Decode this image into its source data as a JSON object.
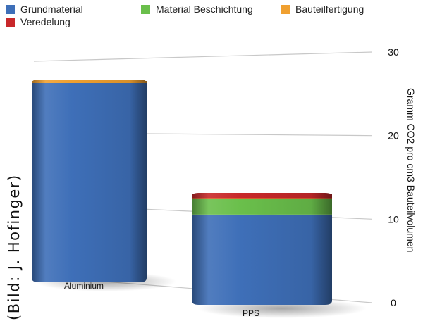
{
  "chart_data": {
    "type": "bar",
    "stacked": true,
    "categories": [
      "Aluminium",
      "PPS"
    ],
    "series": [
      {
        "name": "Grundmaterial",
        "color": "#3e6fb8",
        "values": [
          26.8,
          11.0
        ]
      },
      {
        "name": "Material Beschichtung",
        "color": "#6abf4b",
        "values": [
          0,
          2.0
        ]
      },
      {
        "name": "Bauteilfertigung",
        "color": "#f0a030",
        "values": [
          0.15,
          0.1
        ]
      },
      {
        "name": "Veredelung",
        "color": "#c8282a",
        "values": [
          0,
          0.5
        ]
      }
    ],
    "ylabel": "Gramm CO2 pro cm3 Bauteilvolumen",
    "yticks": [
      0,
      10,
      20,
      30
    ],
    "ylim": [
      0,
      30
    ],
    "grid": true,
    "legend_position": "top"
  },
  "credit": "(Bild: J. Hofinger)"
}
